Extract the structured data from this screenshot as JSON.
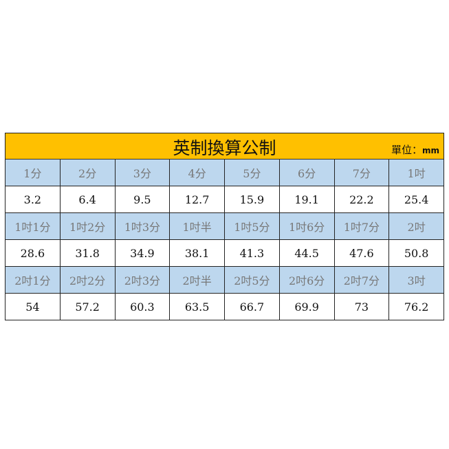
{
  "title": "英制換算公制",
  "unit_label": "單位：",
  "unit": "mm",
  "colors": {
    "title_bg": "#FFC000",
    "header_bg": "#BDD7EE"
  },
  "rows": [
    {
      "type": "header",
      "cells": [
        "1分",
        "2分",
        "3分",
        "4分",
        "5分",
        "6分",
        "7分",
        "1吋"
      ]
    },
    {
      "type": "value",
      "cells": [
        "3.2",
        "6.4",
        "9.5",
        "12.7",
        "15.9",
        "19.1",
        "22.2",
        "25.4"
      ]
    },
    {
      "type": "header",
      "cells": [
        "1吋1分",
        "1吋2分",
        "1吋3分",
        "1吋半",
        "1吋5分",
        "1吋6分",
        "1吋7分",
        "2吋"
      ]
    },
    {
      "type": "value",
      "cells": [
        "28.6",
        "31.8",
        "34.9",
        "38.1",
        "41.3",
        "44.5",
        "47.6",
        "50.8"
      ]
    },
    {
      "type": "header",
      "cells": [
        "2吋1分",
        "2吋2分",
        "2吋3分",
        "2吋半",
        "2吋5分",
        "2吋6分",
        "2吋7分",
        "3吋"
      ]
    },
    {
      "type": "value",
      "cells": [
        "54",
        "57.2",
        "60.3",
        "63.5",
        "66.7",
        "69.9",
        "73",
        "76.2"
      ]
    }
  ]
}
